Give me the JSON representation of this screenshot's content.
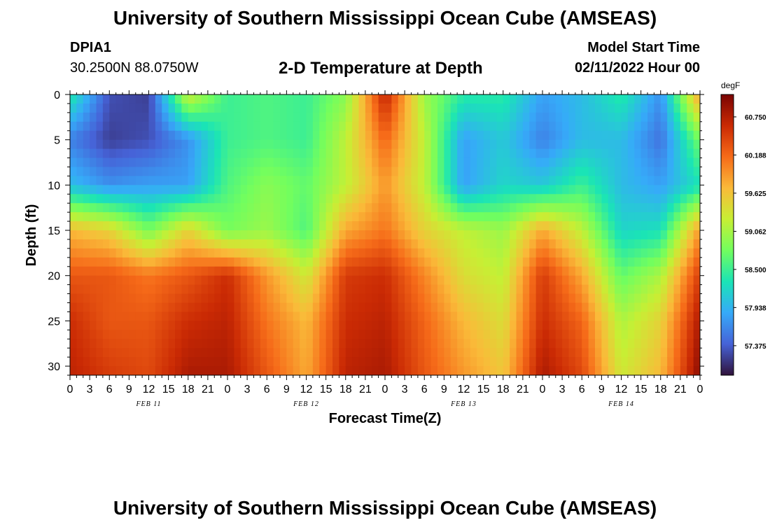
{
  "title": "University of Southern Mississippi Ocean Cube (AMSEAS)",
  "footer_title": "University of Southern Mississippi Ocean Cube (AMSEAS)",
  "station": {
    "id": "DPIA1",
    "coords": "30.2500N  88.0750W"
  },
  "model": {
    "label": "Model Start Time",
    "start": "02/11/2022 Hour 00"
  },
  "colorbar_colors": [
    "#30123b",
    "#4662d7",
    "#36aaf9",
    "#1ae4b6",
    "#72fe5e",
    "#c7ef34",
    "#faba39",
    "#f66b19",
    "#ca2a04",
    "#7a0403"
  ],
  "chart_data": {
    "type": "heatmap",
    "title": "2-D Temperature at Depth",
    "xlabel": "Forecast Time(Z)",
    "ylabel": "Depth (ft)",
    "x_range_hours": [
      0,
      96
    ],
    "y_range_ft": [
      0,
      31
    ],
    "x_tick_labels": [
      "0",
      "3",
      "6",
      "9",
      "12",
      "15",
      "18",
      "21",
      "0",
      "3",
      "6",
      "9",
      "12",
      "15",
      "18",
      "21",
      "0",
      "3",
      "6",
      "9",
      "12",
      "15",
      "18",
      "21",
      "0",
      "3",
      "6",
      "9",
      "12",
      "15",
      "18",
      "21",
      "0"
    ],
    "y_ticks": [
      0,
      5,
      10,
      15,
      20,
      25,
      30
    ],
    "date_labels": [
      "FEB 11",
      "FEB 12",
      "FEB 13",
      "FEB 14"
    ],
    "colorbar": {
      "unit": "degF",
      "range": [
        56.94,
        61.08
      ],
      "ticks": [
        "57.375",
        "57.938",
        "58.500",
        "59.062",
        "59.625",
        "60.188",
        "60.750"
      ]
    },
    "temperature_grid": {
      "x_hours": [
        0,
        6,
        12,
        18,
        24,
        30,
        36,
        42,
        48,
        54,
        60,
        66,
        72,
        78,
        84,
        90,
        96
      ],
      "depth_ft": [
        0,
        5,
        10,
        15,
        20,
        25,
        31
      ],
      "values": [
        [
          58.4,
          57.3,
          57.2,
          59.3,
          58.5,
          58.6,
          58.5,
          58.9,
          60.7,
          59.0,
          58.4,
          58.4,
          57.8,
          58.0,
          58.4,
          57.7,
          59.9
        ],
        [
          57.6,
          57.2,
          57.3,
          57.7,
          58.5,
          58.6,
          58.5,
          59.2,
          60.2,
          59.2,
          57.8,
          58.1,
          57.6,
          58.0,
          58.0,
          57.5,
          58.8
        ],
        [
          58.0,
          57.7,
          57.8,
          57.8,
          58.6,
          58.9,
          58.7,
          59.2,
          59.9,
          59.2,
          57.8,
          58.2,
          58.1,
          58.5,
          58.0,
          57.8,
          58.3
        ],
        [
          59.7,
          59.5,
          58.8,
          59.5,
          58.8,
          59.0,
          58.6,
          59.8,
          60.1,
          59.5,
          59.2,
          59.0,
          59.8,
          59.2,
          58.2,
          58.3,
          59.9
        ],
        [
          60.3,
          60.3,
          60.1,
          60.3,
          60.6,
          59.9,
          59.3,
          60.5,
          60.6,
          60.0,
          59.4,
          59.2,
          60.5,
          59.8,
          58.7,
          59.1,
          60.5
        ],
        [
          60.6,
          60.3,
          60.3,
          60.6,
          60.7,
          60.1,
          59.7,
          60.6,
          60.7,
          60.2,
          59.7,
          59.4,
          60.6,
          60.2,
          59.1,
          59.5,
          60.8
        ],
        [
          60.7,
          60.5,
          60.4,
          60.8,
          60.8,
          60.3,
          59.8,
          60.7,
          60.8,
          60.3,
          59.9,
          59.6,
          60.8,
          60.4,
          59.3,
          59.7,
          61.0
        ]
      ]
    }
  }
}
